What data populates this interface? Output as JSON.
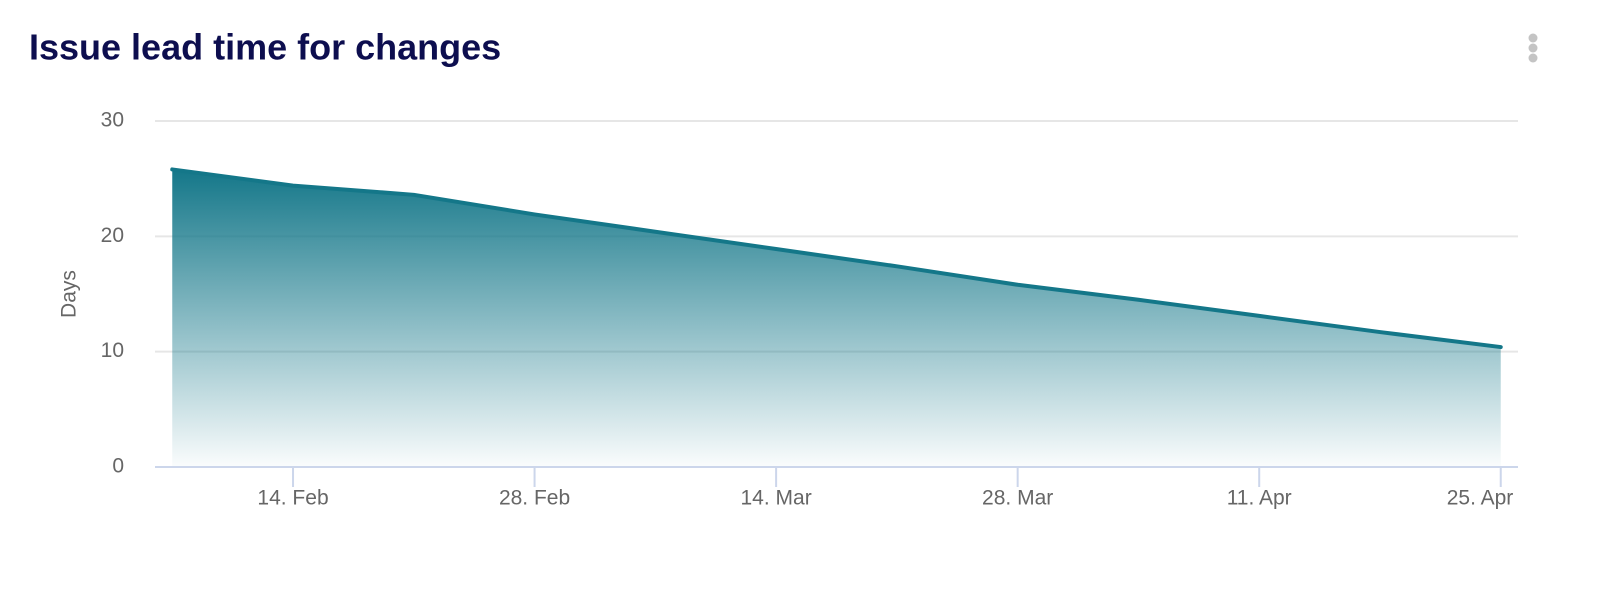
{
  "chart_data": {
    "type": "area",
    "title": "Issue lead time for changes",
    "y_label": "Days",
    "x": [
      "02-07",
      "02-14",
      "02-21",
      "02-28",
      "03-07",
      "03-14",
      "03-21",
      "03-28",
      "04-04",
      "04-11",
      "04-18",
      "04-25"
    ],
    "values": [
      25.8,
      24.4,
      23.6,
      21.9,
      20.4,
      18.9,
      17.4,
      15.8,
      14.5,
      13.1,
      11.7,
      10.4
    ],
    "color": "#147789",
    "xlim": [
      "02-06",
      "04-26"
    ],
    "xticks": [
      {
        "value": "02-14",
        "label": "14. Feb"
      },
      {
        "value": "02-28",
        "label": "28. Feb"
      },
      {
        "value": "03-14",
        "label": "14. Mar"
      },
      {
        "value": "03-28",
        "label": "28. Mar"
      },
      {
        "value": "04-11",
        "label": "11. Apr"
      },
      {
        "value": "04-25",
        "label": "25. Apr"
      }
    ],
    "ylim": [
      0,
      30
    ],
    "yticks": [
      0,
      10,
      20,
      30
    ],
    "grid": true
  }
}
